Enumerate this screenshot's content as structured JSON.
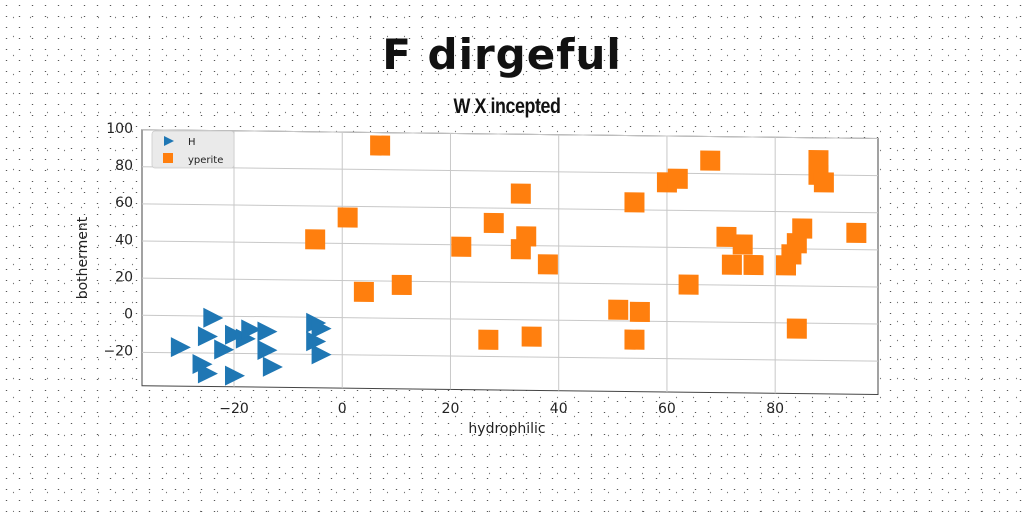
{
  "title": "F dirgeful",
  "subtitle": "W X incepted",
  "colors": {
    "H": "#1f77b4",
    "yperite": "#ff7f0e"
  },
  "chart_data": {
    "type": "scatter",
    "xlabel": "hydrophilic",
    "ylabel": "botherment",
    "xlim": [
      -37,
      99
    ],
    "ylim": [
      -38,
      100
    ],
    "xticks": [
      -20,
      0,
      20,
      40,
      60,
      80
    ],
    "yticks": [
      -20,
      0,
      20,
      40,
      60,
      80,
      100
    ],
    "xtick_labels": [
      "−20",
      "0",
      "20",
      "40",
      "60",
      "80"
    ],
    "ytick_labels": [
      "−20",
      "0",
      "20",
      "40",
      "60",
      "80",
      "100"
    ],
    "grid": true,
    "legend_position": "top-left",
    "series": [
      {
        "name": "H",
        "marker": "triangle-right",
        "color": "#1f77b4",
        "points": [
          [
            -30,
            -17
          ],
          [
            -24,
            -1
          ],
          [
            -25,
            -11
          ],
          [
            -20,
            -10
          ],
          [
            -18,
            -12
          ],
          [
            -17,
            -7
          ],
          [
            -14,
            -8
          ],
          [
            -14,
            -18
          ],
          [
            -22,
            -18
          ],
          [
            -26,
            -26
          ],
          [
            -25,
            -31
          ],
          [
            -20,
            -32
          ],
          [
            -13,
            -27
          ],
          [
            -5,
            -3
          ],
          [
            -4,
            -6
          ],
          [
            -5,
            -13
          ],
          [
            -4,
            -20
          ]
        ]
      },
      {
        "name": "yperite",
        "marker": "square",
        "color": "#ff7f0e",
        "points": [
          [
            7,
            93
          ],
          [
            -5,
            42
          ],
          [
            1,
            54
          ],
          [
            4,
            14
          ],
          [
            11,
            18
          ],
          [
            22,
            39
          ],
          [
            28,
            52
          ],
          [
            27,
            -11
          ],
          [
            33,
            68
          ],
          [
            33,
            38
          ],
          [
            34,
            45
          ],
          [
            35,
            -9
          ],
          [
            38,
            30
          ],
          [
            51,
            6
          ],
          [
            54,
            64
          ],
          [
            54,
            -10
          ],
          [
            55,
            5
          ],
          [
            60,
            75
          ],
          [
            62,
            77
          ],
          [
            64,
            20
          ],
          [
            68,
            87
          ],
          [
            71,
            46
          ],
          [
            72,
            31
          ],
          [
            74,
            42
          ],
          [
            76,
            31
          ],
          [
            82,
            31
          ],
          [
            83,
            37
          ],
          [
            84,
            43
          ],
          [
            84,
            -3
          ],
          [
            85,
            51
          ],
          [
            88,
            88
          ],
          [
            88,
            80
          ],
          [
            89,
            76
          ],
          [
            95,
            49
          ]
        ]
      }
    ]
  }
}
